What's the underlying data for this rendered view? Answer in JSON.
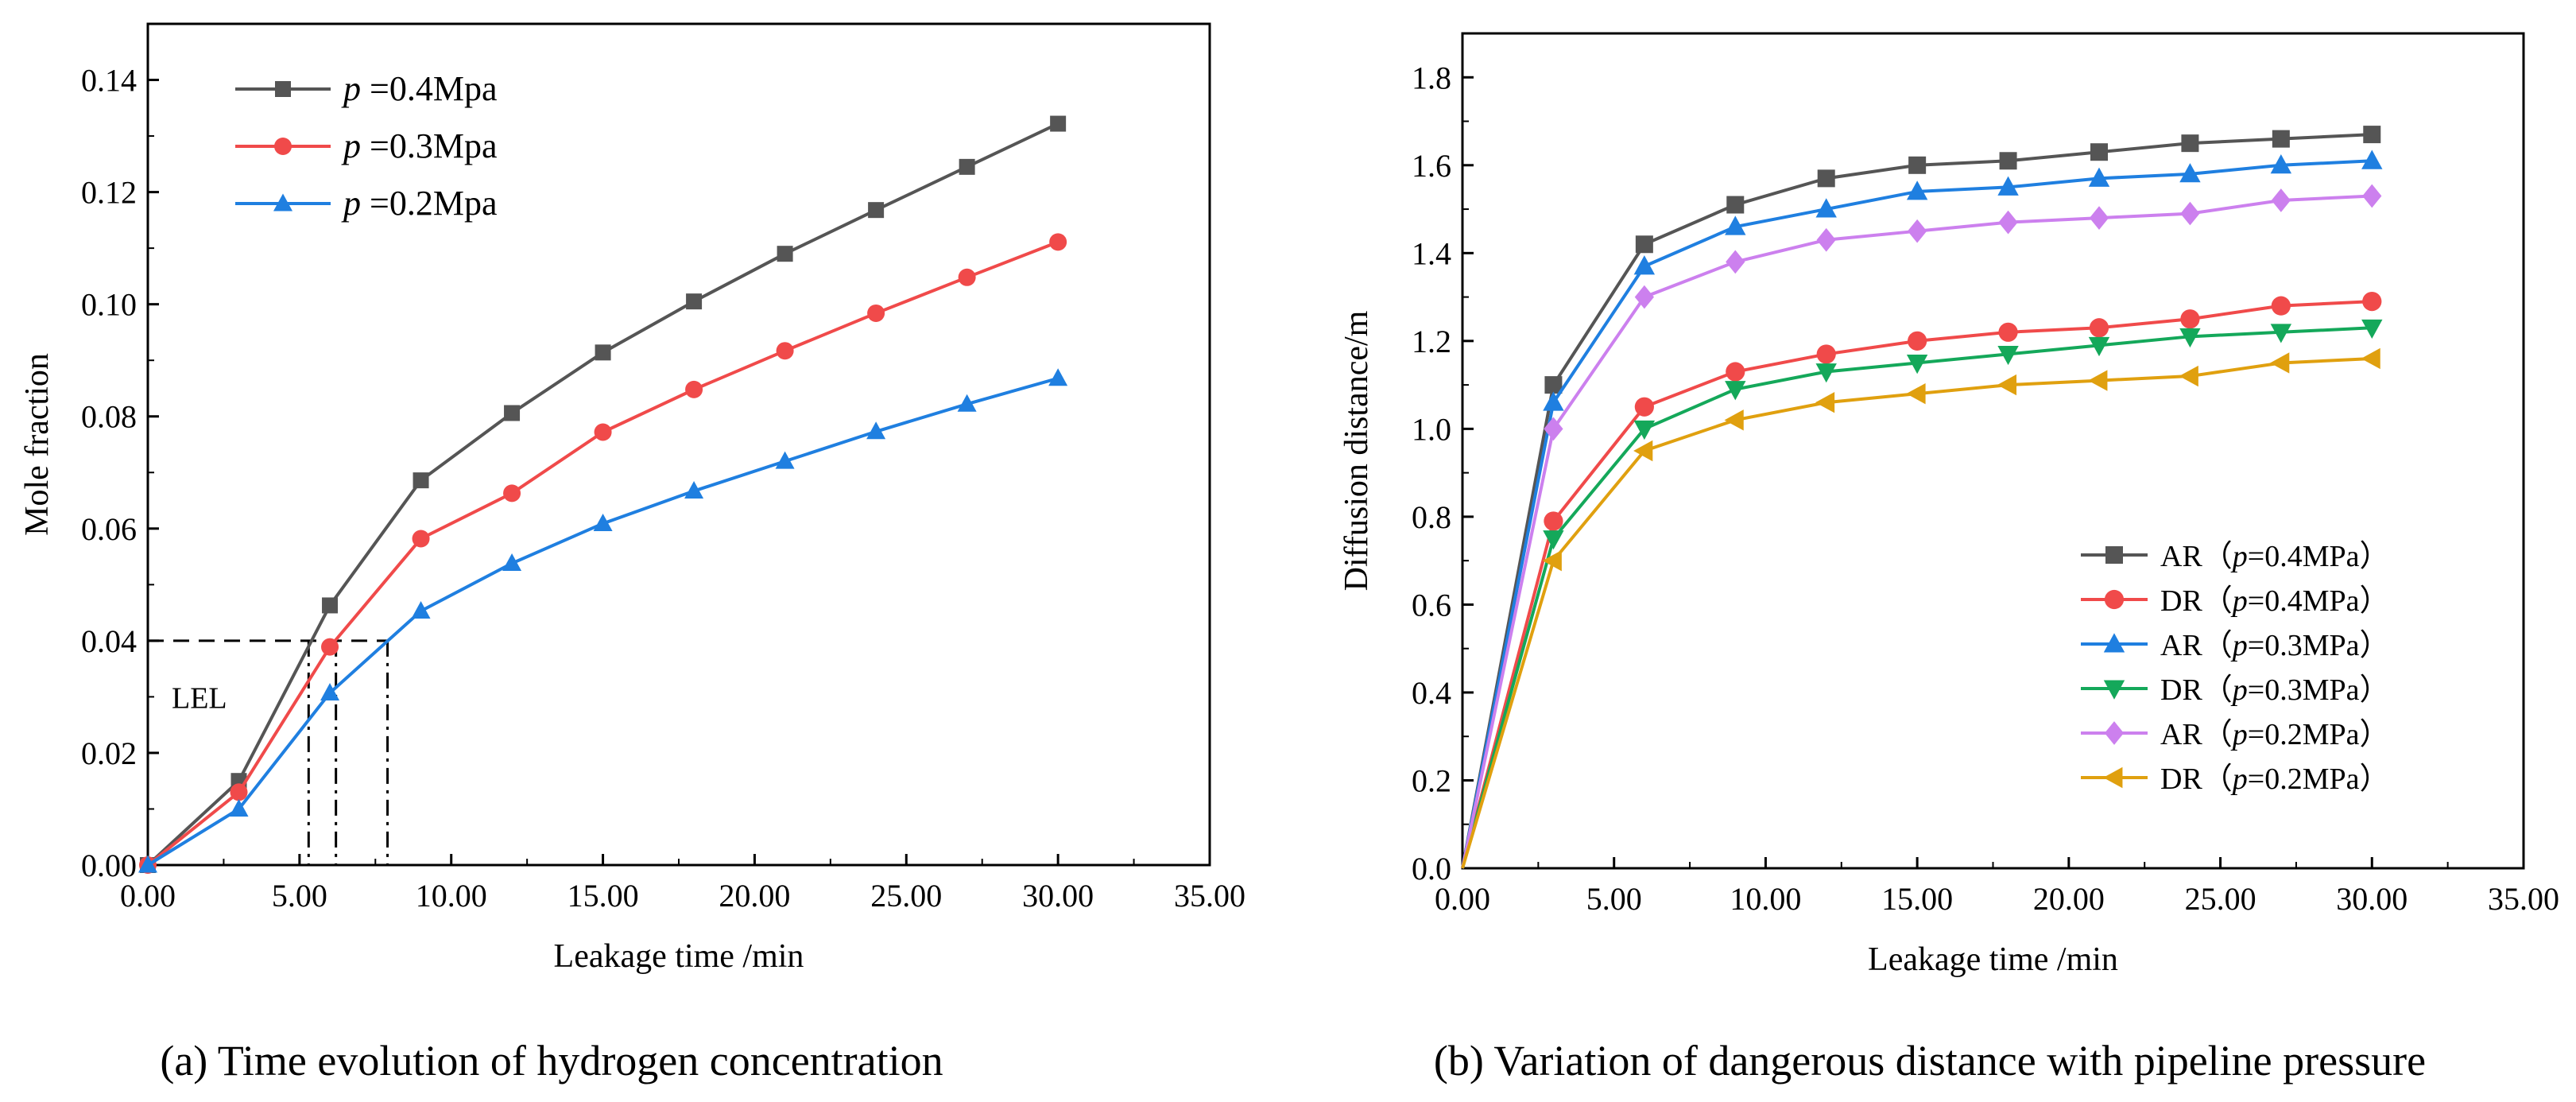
{
  "chart_data": [
    {
      "type": "line",
      "title": "",
      "xlabel": "Leakage time /min",
      "ylabel": "Mole fraction",
      "xlim": [
        0,
        35
      ],
      "ylim": [
        0,
        0.15
      ],
      "xticks": [
        0,
        5,
        10,
        15,
        20,
        25,
        30,
        35
      ],
      "xtick_labels": [
        "0.00",
        "5.00",
        "10.00",
        "15.00",
        "20.00",
        "25.00",
        "30.00",
        "35.00"
      ],
      "yticks": [
        0,
        0.02,
        0.04,
        0.06,
        0.08,
        0.1,
        0.12,
        0.14
      ],
      "ytick_labels": [
        "0.00",
        "0.02",
        "0.04",
        "0.06",
        "0.08",
        "0.10",
        "0.12",
        "0.14"
      ],
      "legend_position": "top-left",
      "x": [
        0,
        3,
        6,
        9,
        12,
        15,
        18,
        21,
        24,
        27,
        30
      ],
      "series": [
        {
          "name_italic": "p",
          "name_rest": " =0.4Mpa",
          "color": "#555555",
          "marker": "square",
          "values": [
            0,
            0.015,
            0.0463,
            0.0686,
            0.0806,
            0.0914,
            0.1005,
            0.109,
            0.1168,
            0.1245,
            0.1322
          ]
        },
        {
          "name_italic": "p",
          "name_rest": " =0.3Mpa",
          "color": "#f04a4a",
          "marker": "circle",
          "values": [
            0,
            0.013,
            0.0389,
            0.0582,
            0.0663,
            0.0772,
            0.0848,
            0.0917,
            0.0984,
            0.1048,
            0.1111
          ]
        },
        {
          "name_italic": "p",
          "name_rest": " =0.2Mpa",
          "color": "#1f7fe0",
          "marker": "triangle-up",
          "values": [
            0,
            0.01,
            0.0307,
            0.0453,
            0.0538,
            0.0609,
            0.0667,
            0.072,
            0.0773,
            0.0822,
            0.0868
          ]
        }
      ],
      "annotation": {
        "label": "LEL",
        "threshold": 0.04,
        "crossings": [
          5.3,
          6.2,
          7.9
        ]
      },
      "caption": "(a) Time evolution of hydrogen concentration"
    },
    {
      "type": "line",
      "title": "",
      "xlabel": "Leakage time /min",
      "ylabel": "Diffusion distance/m",
      "xlim": [
        0,
        35
      ],
      "ylim": [
        0,
        1.9
      ],
      "xticks": [
        0,
        5,
        10,
        15,
        20,
        25,
        30,
        35
      ],
      "xtick_labels": [
        "0.00",
        "5.00",
        "10.00",
        "15.00",
        "20.00",
        "25.00",
        "30.00",
        "35.00"
      ],
      "yticks": [
        0.0,
        0.2,
        0.4,
        0.6,
        0.8,
        1.0,
        1.2,
        1.4,
        1.6,
        1.8
      ],
      "ytick_labels": [
        "0.0",
        "0.2",
        "0.4",
        "0.6",
        "0.8",
        "1.0",
        "1.2",
        "1.4",
        "1.6",
        "1.8"
      ],
      "legend_position": "bottom-right",
      "x": [
        0,
        3,
        6,
        9,
        12,
        15,
        18,
        21,
        24,
        27,
        30
      ],
      "series": [
        {
          "name_pre": "AR（",
          "name_italic": "p",
          "name_rest": "=0.4MPa）",
          "color": "#555555",
          "marker": "square",
          "values": [
            0,
            1.1,
            1.42,
            1.51,
            1.57,
            1.6,
            1.61,
            1.63,
            1.65,
            1.66,
            1.67
          ]
        },
        {
          "name_pre": "DR（",
          "name_italic": "p",
          "name_rest": "=0.4MPa）",
          "color": "#f04a4a",
          "marker": "circle",
          "values": [
            0,
            0.79,
            1.05,
            1.13,
            1.17,
            1.2,
            1.22,
            1.23,
            1.25,
            1.28,
            1.29
          ]
        },
        {
          "name_pre": "AR（",
          "name_italic": "p",
          "name_rest": "=0.3MPa）",
          "color": "#1f7fe0",
          "marker": "triangle-up",
          "values": [
            0,
            1.06,
            1.37,
            1.46,
            1.5,
            1.54,
            1.55,
            1.57,
            1.58,
            1.6,
            1.61
          ]
        },
        {
          "name_pre": "DR（",
          "name_italic": "p",
          "name_rest": "=0.3MPa）",
          "color": "#14a85a",
          "marker": "triangle-down",
          "values": [
            0,
            0.75,
            1.0,
            1.09,
            1.13,
            1.15,
            1.17,
            1.19,
            1.21,
            1.22,
            1.23
          ]
        },
        {
          "name_pre": "AR（",
          "name_italic": "p",
          "name_rest": "=0.2MPa）",
          "color": "#cc80ee",
          "marker": "diamond",
          "values": [
            0,
            1.0,
            1.3,
            1.38,
            1.43,
            1.45,
            1.47,
            1.48,
            1.49,
            1.52,
            1.53
          ]
        },
        {
          "name_pre": "DR（",
          "name_italic": "p",
          "name_rest": "=0.2MPa）",
          "color": "#e0a00f",
          "marker": "triangle-left",
          "values": [
            0,
            0.7,
            0.95,
            1.02,
            1.06,
            1.08,
            1.1,
            1.11,
            1.12,
            1.15,
            1.16
          ]
        }
      ],
      "caption": "(b) Variation of dangerous distance with pipeline pressure"
    }
  ]
}
